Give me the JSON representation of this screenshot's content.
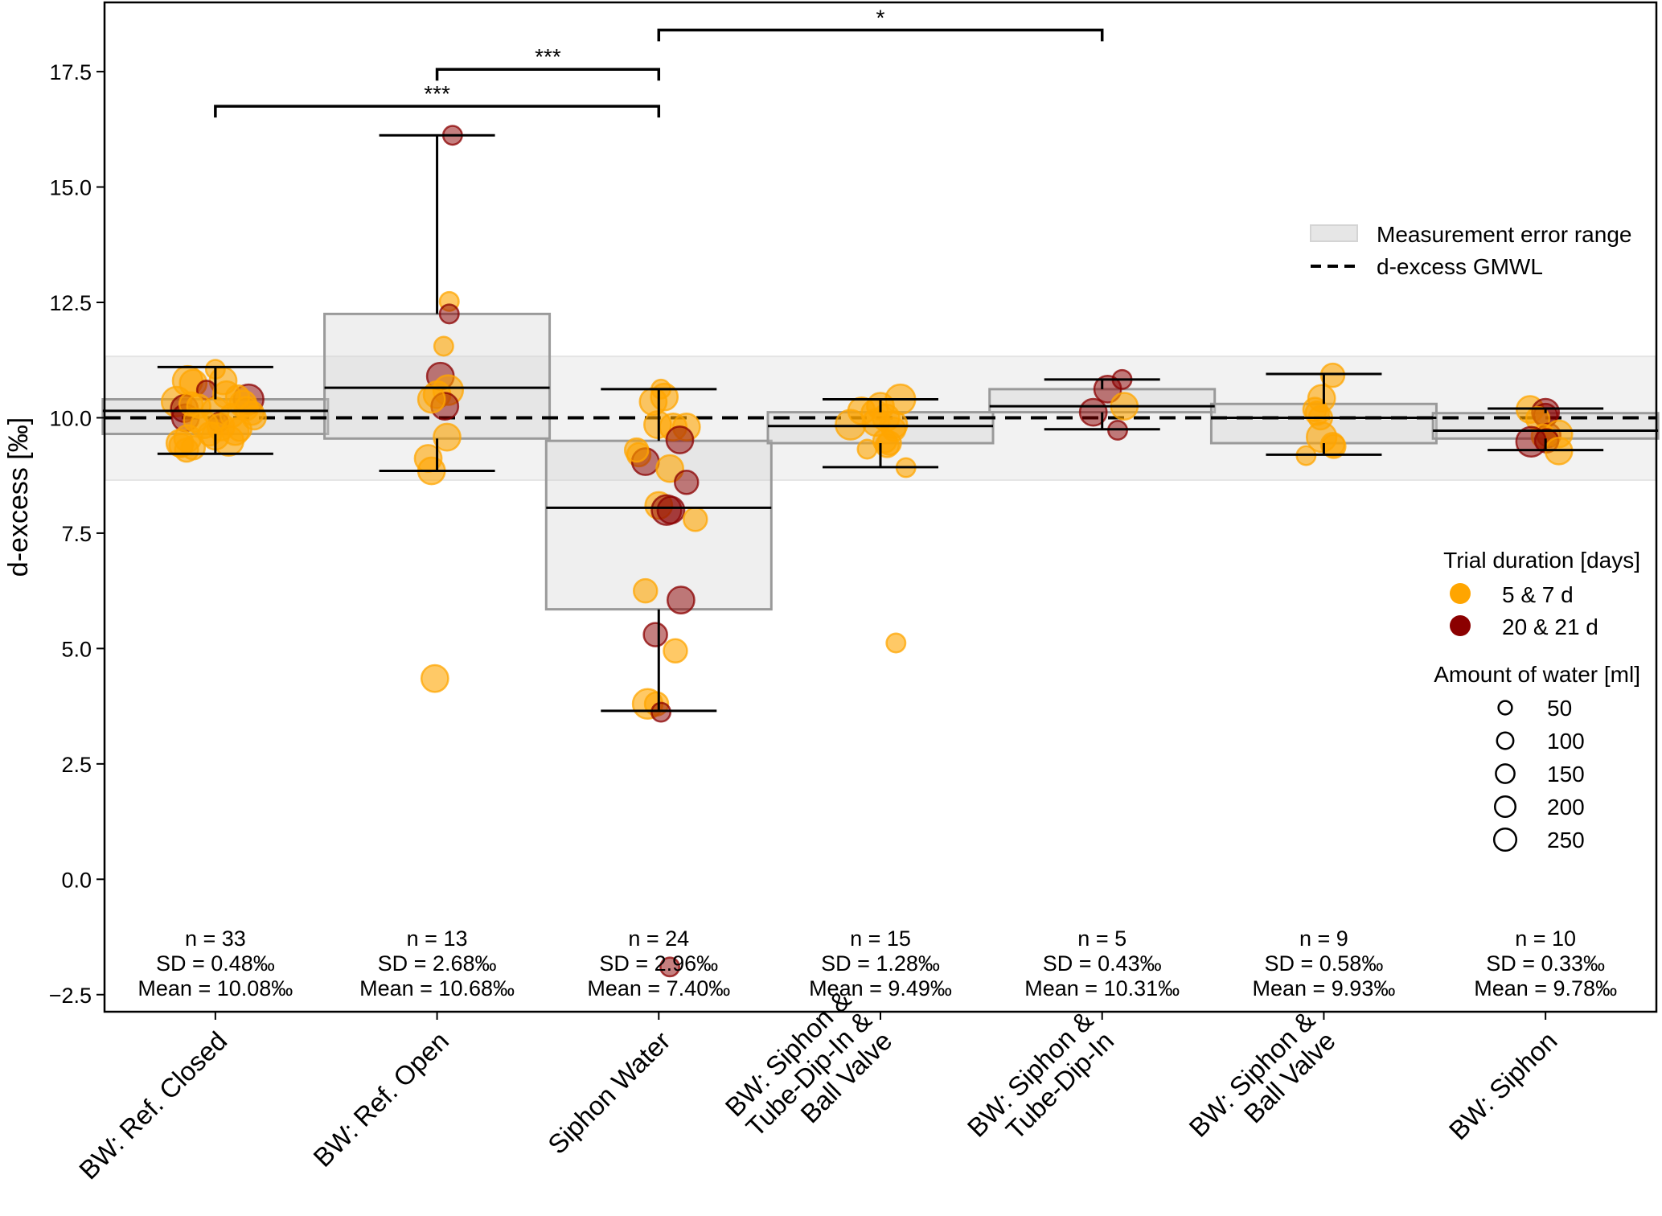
{
  "chart_data": {
    "type": "box",
    "title": "",
    "ylabel": "d-excess [‰]",
    "xlabel": "",
    "ylim": [
      -2.87,
      19.0
    ],
    "yticks": [
      -2.5,
      0.0,
      2.5,
      5.0,
      7.5,
      10.0,
      12.5,
      15.0,
      17.5
    ],
    "ytick_labels": [
      "−2.5",
      "0.0",
      "2.5",
      "5.0",
      "7.5",
      "10.0",
      "12.5",
      "15.0",
      "17.5"
    ],
    "gmwl_value": 10.0,
    "error_band": [
      8.65,
      11.33
    ],
    "colors": {
      "short": "#FFA500",
      "long": "#8B0000",
      "box_fill": "#d9d9d9",
      "box_edge": "#8c8c8c",
      "band": "#e6e6e6"
    },
    "categories": [
      {
        "label": [
          "BW: Ref. Closed"
        ],
        "n": "n = 33",
        "sd": "SD = 0.48‰",
        "mean": "Mean = 10.08‰",
        "q1": 9.65,
        "median": 10.15,
        "q3": 10.4,
        "whisker_low": 9.22,
        "whisker_high": 11.1
      },
      {
        "label": [
          "BW: Ref. Open"
        ],
        "n": "n = 13",
        "sd": "SD = 2.68‰",
        "mean": "Mean = 10.68‰",
        "q1": 9.55,
        "median": 10.65,
        "q3": 12.25,
        "whisker_low": 8.85,
        "whisker_high": 16.12
      },
      {
        "label": [
          "Siphon Water"
        ],
        "n": "n = 24",
        "sd": "SD = 2.96‰",
        "mean": "Mean = 7.40‰",
        "q1": 5.85,
        "median": 8.05,
        "q3": 9.5,
        "whisker_low": 3.65,
        "whisker_high": 10.62
      },
      {
        "label": [
          "BW: Siphon &",
          "Tube-Dip-In &",
          "Ball Valve"
        ],
        "n": "n = 15",
        "sd": "SD = 1.28‰",
        "mean": "Mean = 9.49‰",
        "q1": 9.45,
        "median": 9.82,
        "q3": 10.12,
        "whisker_low": 8.93,
        "whisker_high": 10.4
      },
      {
        "label": [
          "BW: Siphon &",
          "Tube-Dip-In"
        ],
        "n": "n = 5",
        "sd": "SD = 0.43‰",
        "mean": "Mean = 10.31‰",
        "q1": 10.12,
        "median": 10.25,
        "q3": 10.62,
        "whisker_low": 9.75,
        "whisker_high": 10.83
      },
      {
        "label": [
          "BW: Siphon &",
          "Ball Valve"
        ],
        "n": "n = 9",
        "sd": "SD = 0.58‰",
        "mean": "Mean = 9.93‰",
        "q1": 9.45,
        "median": 10.0,
        "q3": 10.3,
        "whisker_low": 9.2,
        "whisker_high": 10.95
      },
      {
        "label": [
          "BW: Siphon"
        ],
        "n": "n = 10",
        "sd": "SD = 0.33‰",
        "mean": "Mean = 9.78‰",
        "q1": 9.55,
        "median": 9.72,
        "q3": 10.1,
        "whisker_low": 9.3,
        "whisker_high": 10.2
      }
    ],
    "points": [
      [
        {
          "y": 11.05,
          "d": "s",
          "ml": 50,
          "j": 0.0
        },
        {
          "y": 10.8,
          "d": "s",
          "ml": 200,
          "j": -0.25
        },
        {
          "y": 10.75,
          "d": "s",
          "ml": 150,
          "j": -0.2
        },
        {
          "y": 10.8,
          "d": "s",
          "ml": 150,
          "j": 0.07
        },
        {
          "y": 10.6,
          "d": "l",
          "ml": 50,
          "j": -0.08
        },
        {
          "y": 10.35,
          "d": "s",
          "ml": 200,
          "j": -0.35
        },
        {
          "y": 10.4,
          "d": "l",
          "ml": 200,
          "j": 0.3
        },
        {
          "y": 10.3,
          "d": "s",
          "ml": 150,
          "j": 0.25
        },
        {
          "y": 10.2,
          "d": "l",
          "ml": 150,
          "j": -0.28
        },
        {
          "y": 10.0,
          "d": "l",
          "ml": 150,
          "j": -0.27
        },
        {
          "y": 10.15,
          "d": "s",
          "ml": 150,
          "j": 0.0
        },
        {
          "y": 10.1,
          "d": "s",
          "ml": 100,
          "j": 0.33
        },
        {
          "y": 9.9,
          "d": "l",
          "ml": 50,
          "j": 0.03
        },
        {
          "y": 9.85,
          "d": "s",
          "ml": 150,
          "j": -0.1
        },
        {
          "y": 9.8,
          "d": "s",
          "ml": 150,
          "j": 0.05
        },
        {
          "y": 9.75,
          "d": "s",
          "ml": 100,
          "j": 0.22
        },
        {
          "y": 9.55,
          "d": "s",
          "ml": 150,
          "j": -0.25
        },
        {
          "y": 9.5,
          "d": "s",
          "ml": 200,
          "j": 0.12
        },
        {
          "y": 9.45,
          "d": "s",
          "ml": 150,
          "j": -0.32
        },
        {
          "y": 9.4,
          "d": "s",
          "ml": 100,
          "j": -0.31
        },
        {
          "y": 9.3,
          "d": "s",
          "ml": 100,
          "j": -0.26
        },
        {
          "y": 9.6,
          "d": "s",
          "ml": 150,
          "j": 0.0
        },
        {
          "y": 10.05,
          "d": "s",
          "ml": 100,
          "j": 0.15
        },
        {
          "y": 10.25,
          "d": "s",
          "ml": 100,
          "j": -0.15
        },
        {
          "y": 9.65,
          "d": "s",
          "ml": 100,
          "j": -0.05
        },
        {
          "y": 10.5,
          "d": "s",
          "ml": 150,
          "j": 0.1
        },
        {
          "y": 9.95,
          "d": "s",
          "ml": 100,
          "j": -0.18
        },
        {
          "y": 10.45,
          "d": "s",
          "ml": 100,
          "j": 0.2
        },
        {
          "y": 9.35,
          "d": "s",
          "ml": 100,
          "j": -0.2
        },
        {
          "y": 10.2,
          "d": "s",
          "ml": 100,
          "j": 0.28
        },
        {
          "y": 9.7,
          "d": "s",
          "ml": 150,
          "j": 0.18
        },
        {
          "y": 10.0,
          "d": "s",
          "ml": 100,
          "j": 0.35
        },
        {
          "y": 10.3,
          "d": "s",
          "ml": 100,
          "j": -0.22
        }
      ],
      [
        {
          "y": 16.12,
          "d": "l",
          "ml": 50,
          "j": 0.14
        },
        {
          "y": 12.52,
          "d": "s",
          "ml": 50,
          "j": 0.11
        },
        {
          "y": 12.25,
          "d": "l",
          "ml": 50,
          "j": 0.11
        },
        {
          "y": 11.55,
          "d": "s",
          "ml": 50,
          "j": 0.06
        },
        {
          "y": 10.9,
          "d": "l",
          "ml": 150,
          "j": 0.03
        },
        {
          "y": 10.6,
          "d": "s",
          "ml": 200,
          "j": 0.1
        },
        {
          "y": 10.5,
          "d": "s",
          "ml": 150,
          "j": 0.0
        },
        {
          "y": 10.25,
          "d": "l",
          "ml": 150,
          "j": 0.07
        },
        {
          "y": 9.58,
          "d": "s",
          "ml": 150,
          "j": 0.09
        },
        {
          "y": 9.12,
          "d": "s",
          "ml": 150,
          "j": -0.08
        },
        {
          "y": 8.85,
          "d": "s",
          "ml": 150,
          "j": -0.05
        },
        {
          "y": 4.35,
          "d": "s",
          "ml": 150,
          "j": -0.02
        },
        {
          "y": 10.4,
          "d": "s",
          "ml": 150,
          "j": -0.05
        }
      ],
      [
        {
          "y": 10.62,
          "d": "s",
          "ml": 50,
          "j": 0.02
        },
        {
          "y": 10.45,
          "d": "s",
          "ml": 150,
          "j": 0.05
        },
        {
          "y": 10.35,
          "d": "s",
          "ml": 150,
          "j": -0.05
        },
        {
          "y": 9.85,
          "d": "s",
          "ml": 150,
          "j": -0.01
        },
        {
          "y": 9.8,
          "d": "s",
          "ml": 150,
          "j": 0.13
        },
        {
          "y": 9.8,
          "d": "s",
          "ml": 150,
          "j": 0.25
        },
        {
          "y": 9.52,
          "d": "l",
          "ml": 150,
          "j": 0.19
        },
        {
          "y": 9.2,
          "d": "s",
          "ml": 100,
          "j": -0.18
        },
        {
          "y": 9.05,
          "d": "l",
          "ml": 150,
          "j": -0.12
        },
        {
          "y": 8.9,
          "d": "s",
          "ml": 150,
          "j": 0.1
        },
        {
          "y": 8.6,
          "d": "l",
          "ml": 100,
          "j": 0.25
        },
        {
          "y": 8.1,
          "d": "s",
          "ml": 150,
          "j": 0.0
        },
        {
          "y": 8.0,
          "d": "l",
          "ml": 200,
          "j": 0.07
        },
        {
          "y": 8.0,
          "d": "l",
          "ml": 150,
          "j": 0.11
        },
        {
          "y": 7.8,
          "d": "s",
          "ml": 100,
          "j": 0.33
        },
        {
          "y": 6.25,
          "d": "s",
          "ml": 100,
          "j": -0.12
        },
        {
          "y": 6.05,
          "d": "l",
          "ml": 150,
          "j": 0.2
        },
        {
          "y": 5.3,
          "d": "l",
          "ml": 100,
          "j": -0.03
        },
        {
          "y": 4.95,
          "d": "s",
          "ml": 100,
          "j": 0.15
        },
        {
          "y": 3.8,
          "d": "s",
          "ml": 200,
          "j": -0.1
        },
        {
          "y": 3.8,
          "d": "s",
          "ml": 100,
          "j": -0.02
        },
        {
          "y": 3.62,
          "d": "l",
          "ml": 50,
          "j": 0.02
        },
        {
          "y": -1.9,
          "d": "l",
          "ml": 50,
          "j": 0.1
        },
        {
          "y": 9.3,
          "d": "s",
          "ml": 100,
          "j": -0.2
        }
      ],
      [
        {
          "y": 10.25,
          "d": "s",
          "ml": 150,
          "j": 0.0
        },
        {
          "y": 10.4,
          "d": "s",
          "ml": 200,
          "j": 0.18
        },
        {
          "y": 10.15,
          "d": "s",
          "ml": 150,
          "j": -0.17
        },
        {
          "y": 10.1,
          "d": "s",
          "ml": 150,
          "j": -0.05
        },
        {
          "y": 10.0,
          "d": "s",
          "ml": 150,
          "j": 0.05
        },
        {
          "y": 9.85,
          "d": "s",
          "ml": 200,
          "j": -0.27
        },
        {
          "y": 9.9,
          "d": "s",
          "ml": 150,
          "j": -0.04
        },
        {
          "y": 9.85,
          "d": "s",
          "ml": 150,
          "j": 0.12
        },
        {
          "y": 9.75,
          "d": "s",
          "ml": 100,
          "j": 0.12
        },
        {
          "y": 9.5,
          "d": "s",
          "ml": 100,
          "j": 0.04
        },
        {
          "y": 9.45,
          "d": "s",
          "ml": 100,
          "j": 0.08
        },
        {
          "y": 9.4,
          "d": "s",
          "ml": 100,
          "j": 0.06
        },
        {
          "y": 9.32,
          "d": "s",
          "ml": 50,
          "j": -0.12
        },
        {
          "y": 8.92,
          "d": "s",
          "ml": 50,
          "j": 0.23
        },
        {
          "y": 5.12,
          "d": "s",
          "ml": 50,
          "j": 0.14
        }
      ],
      [
        {
          "y": 10.83,
          "d": "l",
          "ml": 50,
          "j": 0.18
        },
        {
          "y": 10.62,
          "d": "l",
          "ml": 150,
          "j": 0.05
        },
        {
          "y": 10.25,
          "d": "s",
          "ml": 150,
          "j": 0.2
        },
        {
          "y": 10.12,
          "d": "l",
          "ml": 150,
          "j": -0.08
        },
        {
          "y": 9.73,
          "d": "l",
          "ml": 50,
          "j": 0.14
        }
      ],
      [
        {
          "y": 10.92,
          "d": "s",
          "ml": 100,
          "j": 0.08
        },
        {
          "y": 10.42,
          "d": "s",
          "ml": 150,
          "j": -0.02
        },
        {
          "y": 10.18,
          "d": "s",
          "ml": 100,
          "j": -0.08
        },
        {
          "y": 10.0,
          "d": "s",
          "ml": 100,
          "j": -0.03
        },
        {
          "y": 9.58,
          "d": "s",
          "ml": 200,
          "j": -0.02
        },
        {
          "y": 9.42,
          "d": "s",
          "ml": 100,
          "j": 0.08
        },
        {
          "y": 9.38,
          "d": "s",
          "ml": 100,
          "j": 0.09
        },
        {
          "y": 9.18,
          "d": "s",
          "ml": 50,
          "j": -0.16
        },
        {
          "y": 10.1,
          "d": "s",
          "ml": 100,
          "j": -0.06
        }
      ],
      [
        {
          "y": 10.18,
          "d": "s",
          "ml": 150,
          "j": -0.14
        },
        {
          "y": 10.12,
          "d": "l",
          "ml": 150,
          "j": 0.0
        },
        {
          "y": 10.05,
          "d": "l",
          "ml": 100,
          "j": 0.0
        },
        {
          "y": 9.98,
          "d": "s",
          "ml": 100,
          "j": -0.07
        },
        {
          "y": 9.62,
          "d": "l",
          "ml": 100,
          "j": 0.03
        },
        {
          "y": 9.6,
          "d": "s",
          "ml": 100,
          "j": -0.02
        },
        {
          "y": 9.65,
          "d": "s",
          "ml": 150,
          "j": 0.12
        },
        {
          "y": 9.5,
          "d": "l",
          "ml": 100,
          "j": 0.01
        },
        {
          "y": 9.48,
          "d": "l",
          "ml": 200,
          "j": -0.13
        },
        {
          "y": 9.28,
          "d": "s",
          "ml": 150,
          "j": 0.12
        }
      ]
    ],
    "significance": [
      {
        "from": 0,
        "to": 2,
        "y": 16.75,
        "label": "***"
      },
      {
        "from": 1,
        "to": 2,
        "y": 17.55,
        "label": "***"
      },
      {
        "from": 2,
        "to": 4,
        "y": 18.4,
        "label": "*"
      }
    ],
    "legend_lines": {
      "band_label": "Measurement error range",
      "line_label": "d-excess GMWL"
    },
    "legend_duration": {
      "title": "Trial duration [days]",
      "items": [
        {
          "key": "s",
          "label": "5 & 7 d"
        },
        {
          "key": "l",
          "label": "20 & 21 d"
        }
      ]
    },
    "legend_size": {
      "title": "Amount of water [ml]",
      "items": [
        50,
        100,
        150,
        200,
        250
      ]
    }
  }
}
